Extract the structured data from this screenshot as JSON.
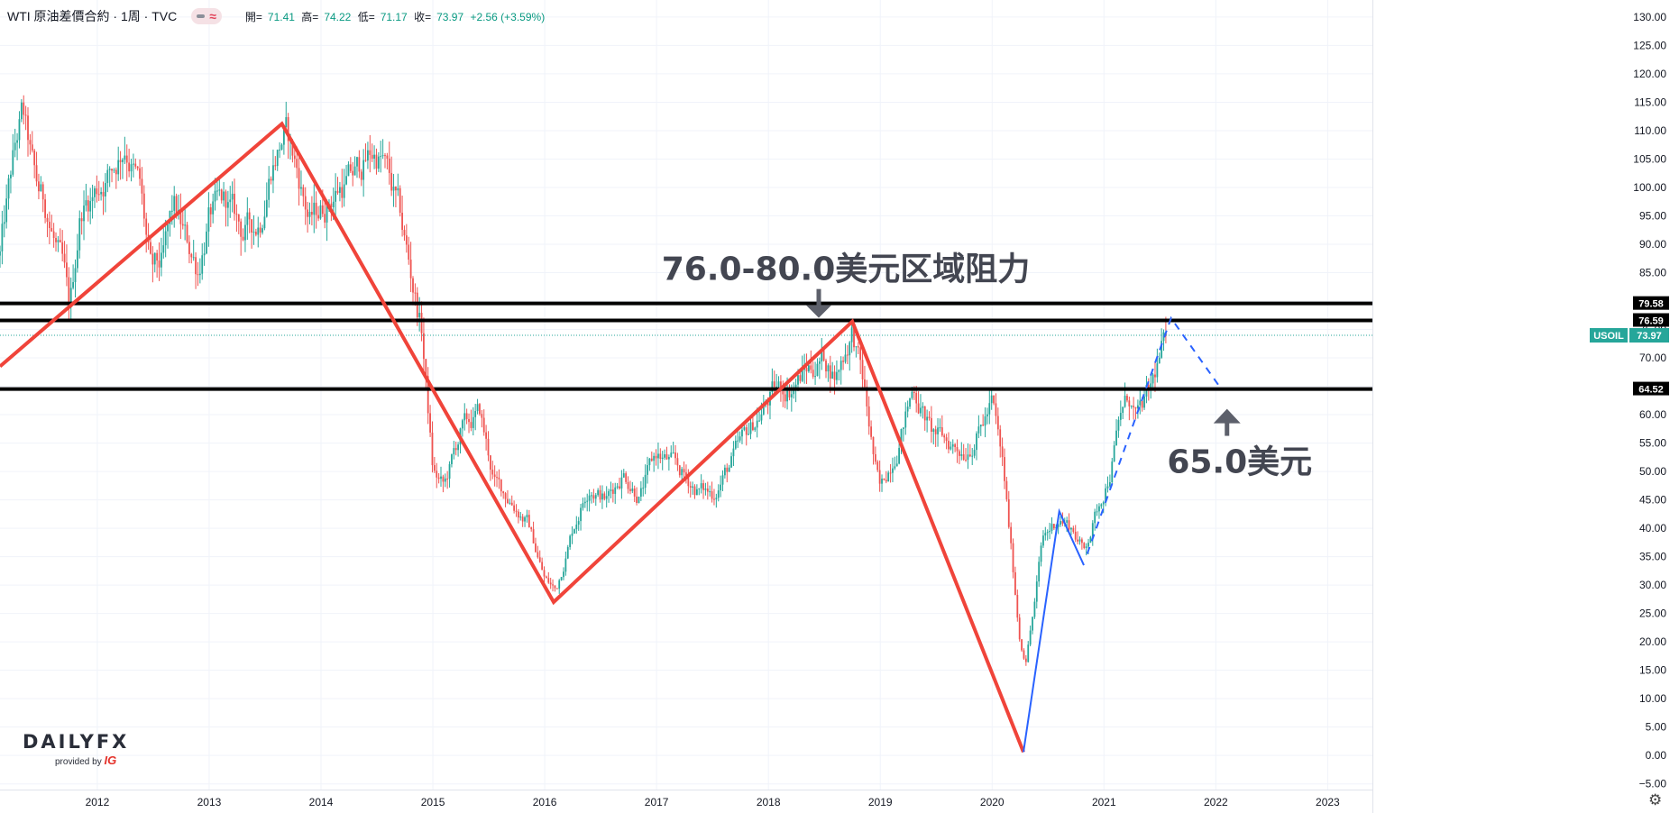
{
  "header": {
    "symbol": "WTI 原油差價合約 · 1周 · TVC",
    "open_label": "開=",
    "open": "71.41",
    "high_label": "高=",
    "high": "74.22",
    "low_label": "低=",
    "low": "71.17",
    "close_label": "收=",
    "close": "73.97",
    "change": "+2.56 (+3.59%)"
  },
  "logo": {
    "brand_a": "DAILY",
    "brand_b": "FX",
    "sub": "provided by",
    "sub_brand": "IG"
  },
  "colors": {
    "up": "#26a69a",
    "down": "#ef5350",
    "trend": "#f0443a",
    "blue": "#2962ff",
    "level": "#000000",
    "badge": "#26a69a"
  },
  "chart_data": {
    "type": "candlestick",
    "title": "",
    "x_ticks": [
      "2012",
      "2013",
      "2014",
      "2015",
      "2016",
      "2017",
      "2018",
      "2019",
      "2020",
      "2021",
      "2022",
      "2023"
    ],
    "x_tick_years": [
      2012,
      2013,
      2014,
      2015,
      2016,
      2017,
      2018,
      2019,
      2020,
      2021,
      2022,
      2023
    ],
    "xlim": [
      2011.13,
      2023.4
    ],
    "ylim": [
      -6,
      133
    ],
    "y_ticks": [
      "130.00",
      "125.00",
      "120.00",
      "115.00",
      "110.00",
      "105.00",
      "100.00",
      "95.00",
      "90.00",
      "85.00",
      "80.00",
      "75.00",
      "70.00",
      "65.00",
      "60.00",
      "55.00",
      "50.00",
      "45.00",
      "40.00",
      "35.00",
      "30.00",
      "25.00",
      "20.00",
      "15.00",
      "10.00",
      "5.00",
      "0.00",
      "−5.00"
    ],
    "y_tick_values": [
      130,
      125,
      120,
      115,
      110,
      105,
      100,
      95,
      90,
      85,
      80,
      75,
      70,
      65,
      60,
      55,
      50,
      45,
      40,
      35,
      30,
      25,
      20,
      15,
      10,
      5,
      0,
      -5
    ],
    "price_path": [
      [
        2011.13,
        88
      ],
      [
        2011.25,
        105
      ],
      [
        2011.33,
        113
      ],
      [
        2011.45,
        100
      ],
      [
        2011.55,
        96
      ],
      [
        2011.7,
        84
      ],
      [
        2011.75,
        77
      ],
      [
        2011.85,
        96
      ],
      [
        2012.0,
        100
      ],
      [
        2012.15,
        104
      ],
      [
        2012.25,
        108
      ],
      [
        2012.38,
        100
      ],
      [
        2012.48,
        84
      ],
      [
        2012.58,
        86
      ],
      [
        2012.68,
        96
      ],
      [
        2012.8,
        90
      ],
      [
        2012.9,
        86
      ],
      [
        2013.0,
        95
      ],
      [
        2013.15,
        97
      ],
      [
        2013.3,
        92
      ],
      [
        2013.45,
        94
      ],
      [
        2013.55,
        104
      ],
      [
        2013.68,
        110
      ],
      [
        2013.8,
        102
      ],
      [
        2013.9,
        94
      ],
      [
        2014.0,
        96
      ],
      [
        2014.15,
        100
      ],
      [
        2014.3,
        102
      ],
      [
        2014.45,
        106
      ],
      [
        2014.55,
        105
      ],
      [
        2014.7,
        95
      ],
      [
        2014.8,
        85
      ],
      [
        2014.9,
        75
      ],
      [
        2015.0,
        50
      ],
      [
        2015.1,
        47
      ],
      [
        2015.25,
        57
      ],
      [
        2015.42,
        60
      ],
      [
        2015.55,
        48
      ],
      [
        2015.7,
        45
      ],
      [
        2015.85,
        41
      ],
      [
        2016.0,
        31
      ],
      [
        2016.1,
        29
      ],
      [
        2016.25,
        40
      ],
      [
        2016.4,
        48
      ],
      [
        2016.55,
        45
      ],
      [
        2016.7,
        50
      ],
      [
        2016.85,
        46
      ],
      [
        2017.0,
        53
      ],
      [
        2017.15,
        51
      ],
      [
        2017.35,
        47
      ],
      [
        2017.5,
        46
      ],
      [
        2017.65,
        51
      ],
      [
        2017.8,
        56
      ],
      [
        2017.95,
        61
      ],
      [
        2018.05,
        64
      ],
      [
        2018.2,
        65
      ],
      [
        2018.35,
        68
      ],
      [
        2018.5,
        70
      ],
      [
        2018.6,
        67
      ],
      [
        2018.75,
        75
      ],
      [
        2018.85,
        65
      ],
      [
        2018.95,
        51
      ],
      [
        2019.0,
        46
      ],
      [
        2019.15,
        55
      ],
      [
        2019.3,
        65
      ],
      [
        2019.45,
        57
      ],
      [
        2019.6,
        55
      ],
      [
        2019.75,
        54
      ],
      [
        2019.9,
        58
      ],
      [
        2020.0,
        62
      ],
      [
        2020.1,
        50
      ],
      [
        2020.2,
        30
      ],
      [
        2020.25,
        20
      ],
      [
        2020.3,
        17
      ],
      [
        2020.38,
        27
      ],
      [
        2020.45,
        38
      ],
      [
        2020.6,
        42
      ],
      [
        2020.72,
        40
      ],
      [
        2020.82,
        36
      ],
      [
        2020.92,
        42
      ],
      [
        2021.05,
        50
      ],
      [
        2021.15,
        60
      ],
      [
        2021.22,
        63
      ],
      [
        2021.3,
        59
      ],
      [
        2021.42,
        64
      ],
      [
        2021.5,
        70
      ],
      [
        2021.56,
        74
      ]
    ],
    "trendlines_red": [
      [
        [
          2011.13,
          68.5
        ],
        [
          2013.65,
          111.2
        ],
        [
          2016.08,
          27.0
        ],
        [
          2018.75,
          76.4
        ],
        [
          2020.28,
          0.6
        ]
      ]
    ],
    "trendlines_blue": [
      [
        [
          2020.28,
          0.6
        ],
        [
          2020.6,
          43
        ],
        [
          2020.82,
          33.5
        ]
      ]
    ],
    "projection_dashed": [
      [
        2020.85,
        35.5
      ],
      [
        2021.6,
        77
      ],
      [
        2022.05,
        64.5
      ]
    ],
    "horizontal_levels": [
      79.58,
      76.59,
      64.52
    ],
    "level_labels": [
      "79.58",
      "76.59",
      "64.52"
    ],
    "last_price": 73.97,
    "last_price_symbol": "USOIL",
    "last_price_label": "73.97",
    "annotations": [
      {
        "text": "76.0-80.0美元区域阻力",
        "arrow": "down",
        "x": 2018.45,
        "y": 79.58
      },
      {
        "text": "65.0美元",
        "arrow": "up",
        "x": 2022.1,
        "y": 64.52
      }
    ],
    "grid": true,
    "legend": "none"
  }
}
